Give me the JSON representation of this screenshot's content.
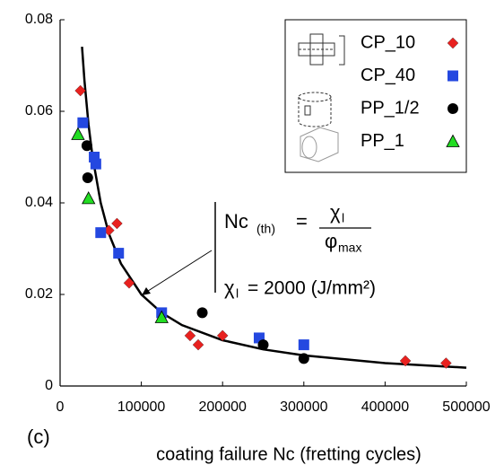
{
  "chart_data": {
    "type": "scatter",
    "panel_label": "(c)",
    "x_label": "coating failure Nc (fretting cycles)",
    "xlim": [
      0,
      500000
    ],
    "xticks": [
      0,
      100000,
      200000,
      300000,
      400000,
      500000
    ],
    "ylim": [
      0,
      0.08
    ],
    "yticks": [
      0,
      0.02,
      0.04,
      0.06,
      0.08
    ],
    "legend": "top-right",
    "series": [
      {
        "name": "CP_10",
        "color": "#e8211f",
        "marker": "diamond",
        "x": [
          25000,
          60000,
          70000,
          85000,
          160000,
          170000,
          200000,
          425000,
          475000
        ],
        "values": [
          0.0645,
          0.034,
          0.0355,
          0.0225,
          0.011,
          0.009,
          0.011,
          0.0055,
          0.005
        ]
      },
      {
        "name": "CP_40",
        "color": "#2448e0",
        "marker": "square",
        "x": [
          28000,
          42000,
          44000,
          50000,
          72000,
          125000,
          245000,
          300000
        ],
        "values": [
          0.0575,
          0.05,
          0.0485,
          0.0335,
          0.029,
          0.016,
          0.0105,
          0.009
        ]
      },
      {
        "name": "PP_1/2",
        "color": "#000000",
        "marker": "circle",
        "x": [
          33000,
          34000,
          175000,
          250000,
          300000
        ],
        "values": [
          0.0525,
          0.0455,
          0.016,
          0.009,
          0.006
        ]
      },
      {
        "name": "PP_1",
        "color": "#22dd22",
        "marker": "triangle",
        "x": [
          22000,
          35000,
          125000
        ],
        "values": [
          0.055,
          0.041,
          0.015
        ]
      }
    ],
    "fit": {
      "color": "#000000",
      "x": [
        27000,
        30000,
        35000,
        40000,
        50000,
        60000,
        75000,
        100000,
        125000,
        150000,
        200000,
        250000,
        300000,
        400000,
        500000
      ],
      "values": [
        0.0741,
        0.0667,
        0.0571,
        0.05,
        0.04,
        0.0333,
        0.0267,
        0.02,
        0.016,
        0.0133,
        0.01,
        0.008,
        0.0067,
        0.005,
        0.004
      ]
    },
    "annotation": {
      "lhs": "Nc",
      "lhs_sub": "(th)",
      "equals": "=",
      "numerator": "χ",
      "numerator_sub": "l",
      "denominator": "φ",
      "denominator_sub": "max",
      "constant_symbol": "χ",
      "constant_sub": "l",
      "constant_text": "= 2000 (J/mm²)"
    }
  }
}
